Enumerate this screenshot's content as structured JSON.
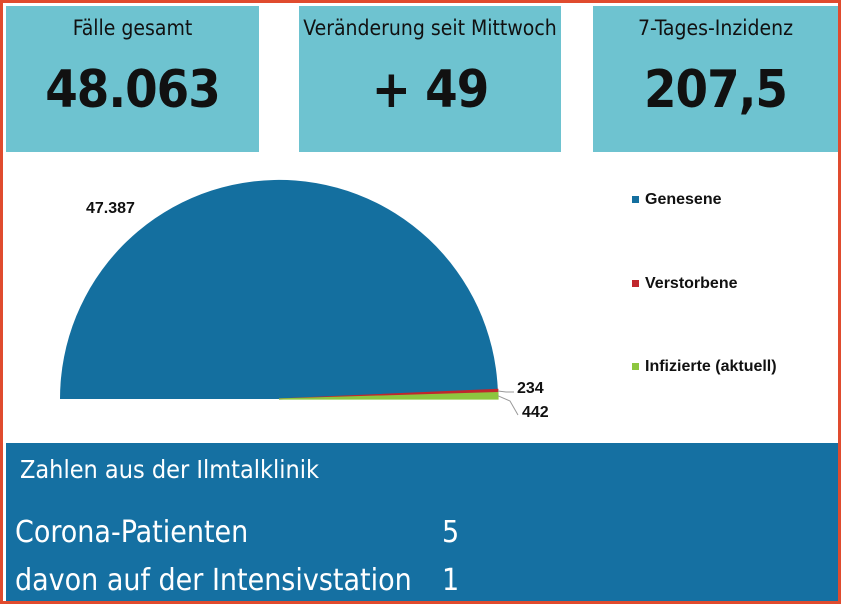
{
  "stats": {
    "total": {
      "label": "Fälle gesamt",
      "value": "48.063"
    },
    "change": {
      "label": "Veränderung seit Mittwoch",
      "value": "+ 49"
    },
    "incidence": {
      "label": "7-Tages-Inzidenz",
      "value": "207,5"
    }
  },
  "chart_data": {
    "type": "pie",
    "variant": "half-pie",
    "categories": [
      "Genesene",
      "Verstorbene",
      "Infizierte (aktuell)"
    ],
    "values": [
      47387,
      234,
      442
    ],
    "value_labels": [
      "47.387",
      "234",
      "442"
    ],
    "legend_position": "right",
    "colors": [
      "#146f9f",
      "#c0272d",
      "#8dc63f"
    ]
  },
  "clinic": {
    "title": "Zahlen aus der Ilmtalklinik",
    "rows": [
      {
        "label": "Corona-Patienten",
        "value": "5"
      },
      {
        "label": "davon auf der Intensivstation",
        "value": "1"
      }
    ]
  }
}
